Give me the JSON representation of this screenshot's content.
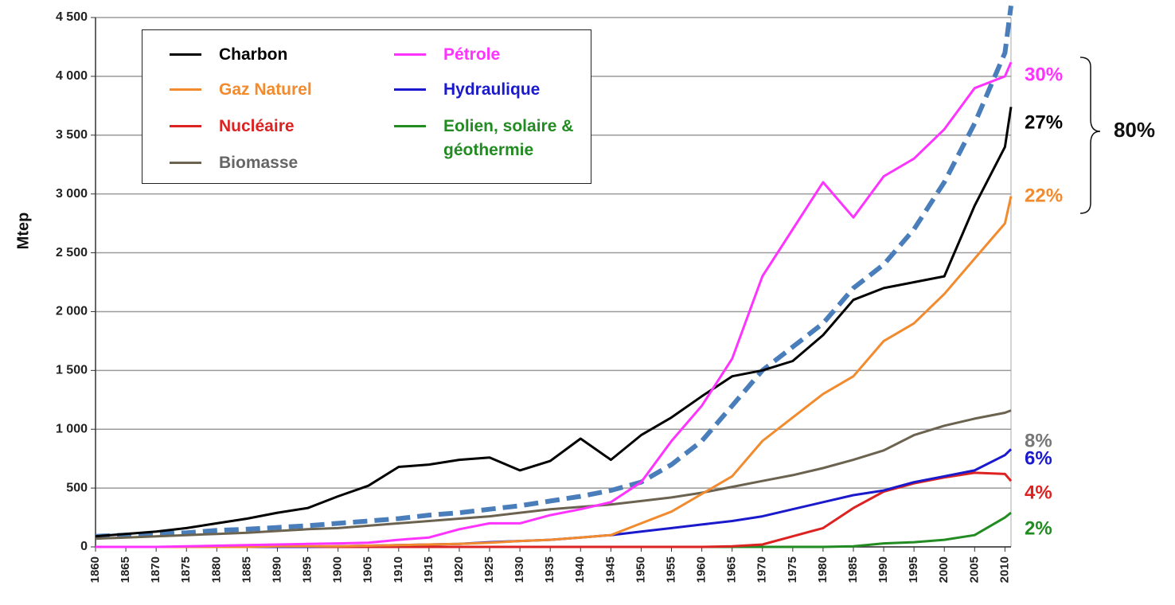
{
  "chart_data": {
    "type": "line",
    "y_label": "Mtep",
    "x": [
      1860,
      1865,
      1870,
      1875,
      1880,
      1885,
      1890,
      1895,
      1900,
      1905,
      1910,
      1915,
      1920,
      1925,
      1930,
      1935,
      1940,
      1945,
      1950,
      1955,
      1960,
      1965,
      1970,
      1975,
      1980,
      1985,
      1990,
      1995,
      2000,
      2005,
      2010,
      2011
    ],
    "xlim": [
      1860,
      2011
    ],
    "xticks": [
      1860,
      1865,
      1870,
      1875,
      1880,
      1885,
      1890,
      1895,
      1900,
      1905,
      1910,
      1915,
      1920,
      1925,
      1930,
      1935,
      1940,
      1945,
      1950,
      1955,
      1960,
      1965,
      1970,
      1975,
      1980,
      1985,
      1990,
      1995,
      2000,
      2005,
      2010
    ],
    "ylim": [
      0,
      4500
    ],
    "yticks": [
      0,
      500,
      {
        "value": 1000,
        "label": "1 000"
      },
      {
        "value": 1500,
        "label": "1 500"
      },
      {
        "value": 2000,
        "label": "2 000"
      },
      {
        "value": 2500,
        "label": "2 500"
      },
      {
        "value": 3000,
        "label": "3 000"
      },
      {
        "value": 3500,
        "label": "3 500"
      },
      {
        "value": 4000,
        "label": "4 000"
      },
      {
        "value": 4500,
        "label": "4 500"
      }
    ],
    "grid": true,
    "series": [
      {
        "name": "Charbon",
        "color": "#000000",
        "share_label": "27%",
        "values": [
          90,
          110,
          130,
          160,
          200,
          240,
          290,
          330,
          430,
          520,
          680,
          700,
          740,
          760,
          650,
          730,
          920,
          740,
          950,
          1100,
          1280,
          1450,
          1500,
          1580,
          1800,
          2100,
          2200,
          2250,
          2300,
          2900,
          3400,
          3740
        ]
      },
      {
        "name": "Gaz Naturel",
        "color": "#f28a2e",
        "share_label": "22%",
        "values": [
          0,
          0,
          0,
          0,
          0,
          0,
          5,
          5,
          5,
          10,
          15,
          20,
          25,
          35,
          50,
          60,
          80,
          100,
          200,
          300,
          450,
          600,
          900,
          1100,
          1300,
          1450,
          1750,
          1900,
          2150,
          2450,
          2750,
          2980
        ]
      },
      {
        "name": "Nucléaire",
        "color": "#dd2222",
        "share_label": "4%",
        "values": [
          0,
          0,
          0,
          0,
          0,
          0,
          0,
          0,
          0,
          0,
          0,
          0,
          0,
          0,
          0,
          0,
          0,
          0,
          0,
          0,
          0,
          5,
          20,
          90,
          160,
          330,
          470,
          540,
          590,
          630,
          620,
          560
        ]
      },
      {
        "name": "Biomasse",
        "color": "#6b6350",
        "share_label": "8%",
        "values": [
          70,
          80,
          90,
          100,
          110,
          120,
          135,
          150,
          160,
          180,
          200,
          220,
          240,
          260,
          290,
          320,
          340,
          360,
          390,
          420,
          460,
          510,
          560,
          610,
          670,
          740,
          820,
          950,
          1030,
          1090,
          1140,
          1160
        ]
      },
      {
        "name": "Pétrole",
        "color": "#ff33ff",
        "share_label": "30%",
        "values": [
          0,
          0,
          0,
          5,
          10,
          15,
          20,
          25,
          30,
          35,
          60,
          80,
          150,
          200,
          200,
          270,
          320,
          380,
          550,
          900,
          1200,
          1600,
          2300,
          2700,
          3100,
          2800,
          3150,
          3300,
          3550,
          3900,
          4000,
          4120
        ]
      },
      {
        "name": "Hydraulique",
        "color": "#1a1acc",
        "share_label": "6%",
        "values": [
          0,
          0,
          0,
          0,
          0,
          0,
          0,
          0,
          5,
          10,
          15,
          20,
          25,
          40,
          50,
          60,
          80,
          100,
          130,
          160,
          190,
          220,
          260,
          320,
          380,
          440,
          480,
          550,
          600,
          650,
          780,
          830
        ]
      },
      {
        "name": "Eolien, solaire & géothermie",
        "color": "#228b22",
        "share_label": "2%",
        "values": [
          0,
          0,
          0,
          0,
          0,
          0,
          0,
          0,
          0,
          0,
          0,
          0,
          0,
          0,
          0,
          0,
          0,
          0,
          0,
          0,
          0,
          0,
          0,
          0,
          0,
          5,
          30,
          40,
          60,
          100,
          250,
          290
        ]
      },
      {
        "color": "#4a7ebb",
        "dashed": true,
        "values": [
          90,
          100,
          110,
          120,
          140,
          150,
          165,
          180,
          200,
          220,
          240,
          270,
          290,
          320,
          350,
          390,
          430,
          480,
          550,
          700,
          900,
          1200,
          1500,
          1700,
          1900,
          2200,
          2400,
          2700,
          3100,
          3600,
          4200,
          4600
        ]
      }
    ],
    "total_label": "80%"
  }
}
